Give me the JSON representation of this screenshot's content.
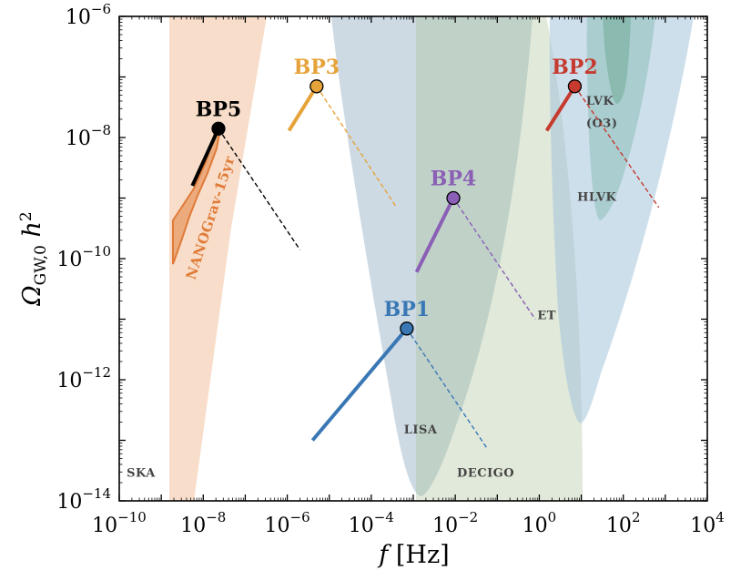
{
  "chart_data": {
    "type": "line",
    "x_scale": "log",
    "y_scale": "log",
    "xlim": [
      1e-10,
      10000.0
    ],
    "ylim": [
      1e-14,
      1e-06
    ],
    "xlabel": "f  [Hz]",
    "ylabel": "Ω_GW,0 h²",
    "x_ticks": [
      {
        "base": "10",
        "exp": "−10"
      },
      {
        "base": "10",
        "exp": "−8"
      },
      {
        "base": "10",
        "exp": "−6"
      },
      {
        "base": "10",
        "exp": "−4"
      },
      {
        "base": "10",
        "exp": "−2"
      },
      {
        "base": "10",
        "exp": "0"
      },
      {
        "base": "10",
        "exp": "2"
      },
      {
        "base": "10",
        "exp": "4"
      }
    ],
    "y_ticks": [
      {
        "base": "10",
        "exp": "−6"
      },
      {
        "base": "10",
        "exp": "−8"
      },
      {
        "base": "10",
        "exp": "−10"
      },
      {
        "base": "10",
        "exp": "−12"
      },
      {
        "base": "10",
        "exp": "−14"
      }
    ],
    "detectors": [
      {
        "name": "SKA",
        "color": "#f2c39f",
        "label_at": [
          1.5e-10,
          2.5e-14
        ]
      },
      {
        "name": "LISA",
        "color": "#6f9a8c",
        "label_at": [
          0.0006,
          1.3e-13
        ]
      },
      {
        "name": "DECIGO",
        "color": "#c3d4b3",
        "label_at": [
          0.011,
          2.5e-14
        ]
      },
      {
        "name": "ET",
        "color": "#a9c4da",
        "label_at": [
          0.9,
          1e-11
        ]
      },
      {
        "name": "HLVK",
        "color": "#a9c4da",
        "label_at": [
          8,
          9e-10
        ]
      },
      {
        "name": "LVK",
        "color": "#7fb8a8",
        "label_at": [
          13,
          3.5e-08
        ]
      },
      {
        "name": "(O3)",
        "color": "#7fb8a8",
        "label_at": [
          13,
          1.5e-08
        ]
      },
      {
        "name": "NANOGrav-15yr",
        "color": "#e07b39"
      }
    ],
    "series": [
      {
        "name": "BP1",
        "color": "#3a78b5",
        "peak": [
          0.0007,
          7e-12
        ],
        "left": [
          [
            4e-06,
            1e-13
          ],
          [
            0.0007,
            7e-12
          ]
        ],
        "right": [
          [
            0.0007,
            7e-12
          ],
          [
            0.06,
            7e-14
          ]
        ]
      },
      {
        "name": "BP2",
        "color": "#c63a2f",
        "peak": [
          7,
          7e-08
        ],
        "left": [
          [
            1.5,
            1.3e-08
          ],
          [
            7,
            7e-08
          ]
        ],
        "right": [
          [
            7,
            7e-08
          ],
          [
            700,
            7e-10
          ]
        ]
      },
      {
        "name": "BP3",
        "color": "#e6a33a",
        "peak": [
          5e-06,
          7e-08
        ],
        "left": [
          [
            1.1e-06,
            1.3e-08
          ],
          [
            5e-06,
            7e-08
          ]
        ],
        "right": [
          [
            5e-06,
            7e-08
          ],
          [
            0.0004,
            7e-10
          ]
        ]
      },
      {
        "name": "BP4",
        "color": "#8a5fb5",
        "peak": [
          0.009,
          1e-09
        ],
        "left": [
          [
            0.0012,
            6e-11
          ],
          [
            0.009,
            1e-09
          ]
        ],
        "right": [
          [
            0.009,
            1e-09
          ],
          [
            0.8,
            1e-11
          ]
        ]
      },
      {
        "name": "BP5",
        "color": "#000000",
        "peak": [
          2.3e-08,
          1.4e-08
        ],
        "left": [
          [
            5.5e-09,
            1.6e-09
          ],
          [
            2.3e-08,
            1.4e-08
          ]
        ],
        "right": [
          [
            2.3e-08,
            1.4e-08
          ],
          [
            2e-06,
            1.4e-10
          ]
        ]
      }
    ]
  }
}
